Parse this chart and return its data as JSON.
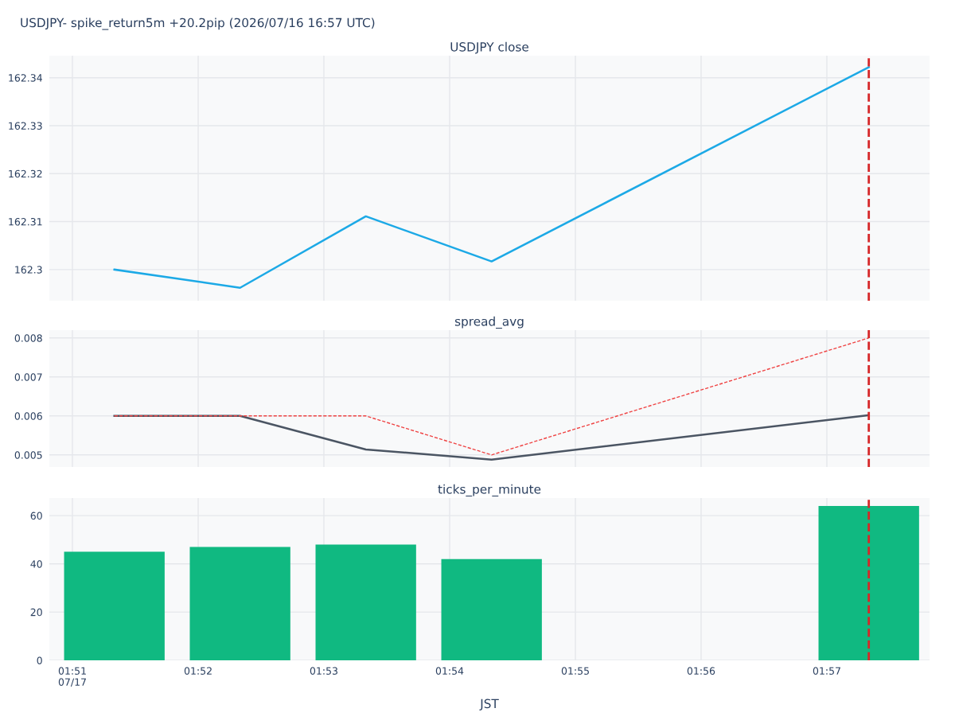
{
  "chart_data": [
    {
      "type": "line",
      "title": "USDJPY- spike_return5m +20.2pip (2026/07/16 16:57 UTC)",
      "subtitle": "USDJPY close",
      "x": [
        1.85556,
        1.87222,
        1.88889,
        1.90556,
        1.95556
      ],
      "series": [
        {
          "color": "#1ca9e6",
          "values": [
            162.3,
            162.2962,
            162.3111,
            162.3017,
            162.3422
          ]
        }
      ],
      "xlim": [
        1.84694,
        1.96361
      ],
      "xticks": [
        {
          "value": 1.85,
          "label": null
        },
        {
          "value": 1.86667,
          "label": null
        },
        {
          "value": 1.88333,
          "label": null
        },
        {
          "value": 1.9,
          "label": null
        },
        {
          "value": 1.91667,
          "label": null
        },
        {
          "value": 1.93333,
          "label": null
        },
        {
          "value": 1.95,
          "label": null
        }
      ],
      "ylim": [
        162.2935,
        162.3446
      ],
      "yticks": [
        {
          "value": 162.3,
          "label": "162.3"
        },
        162.31,
        162.32,
        162.33,
        162.34
      ],
      "tick_labels": "y",
      "grid": true,
      "marker": "none",
      "line_style": "solid",
      "ref_lines": [
        {
          "axis": "x",
          "value": 1.95556,
          "color": "#d62728",
          "line_style": "dashed"
        }
      ]
    },
    {
      "type": "line",
      "title": "spread_avg",
      "x": [
        1.85556,
        1.87222,
        1.88889,
        1.90556,
        1.95556
      ],
      "series": [
        {
          "color": "#ef4444",
          "line_style": "dashed",
          "values": [
            0.006,
            0.006,
            0.006,
            0.005,
            0.008
          ]
        },
        {
          "color": "#4b5563",
          "line_style": "solid",
          "values": [
            0.006,
            0.006,
            0.00514,
            0.00488,
            0.00602
          ]
        }
      ],
      "xlim": [
        1.84694,
        1.96361
      ],
      "xticks": [
        {
          "value": 1.85,
          "label": null
        },
        {
          "value": 1.86667,
          "label": null
        },
        {
          "value": 1.88333,
          "label": null
        },
        {
          "value": 1.9,
          "label": null
        },
        {
          "value": 1.91667,
          "label": null
        },
        {
          "value": 1.93333,
          "label": null
        },
        {
          "value": 1.95,
          "label": null
        }
      ],
      "ylim": [
        0.00469,
        0.0082
      ],
      "yticks": [
        0.005,
        0.006,
        0.007,
        0.008
      ],
      "tick_labels": "y",
      "grid": true,
      "marker": "none",
      "ref_lines": [
        {
          "axis": "x",
          "value": 1.95556,
          "color": "#d62728",
          "line_style": "dashed"
        }
      ]
    },
    {
      "type": "bar",
      "title": "ticks_per_minute",
      "xlabel": "JST",
      "x": [
        1.85556,
        1.87222,
        1.88889,
        1.90556,
        1.95556
      ],
      "series": [
        {
          "color": "#10b981",
          "values": [
            45,
            47,
            48,
            42,
            64
          ]
        }
      ],
      "xlim": [
        1.84694,
        1.96361
      ],
      "xticks": [
        {
          "value": 1.85,
          "label": "01:51\n07/17"
        },
        {
          "value": 1.86667,
          "label": "01:52"
        },
        {
          "value": 1.88333,
          "label": "01:53"
        },
        {
          "value": 1.9,
          "label": "01:54"
        },
        {
          "value": 1.91667,
          "label": "01:55"
        },
        {
          "value": 1.93333,
          "label": "01:56"
        },
        {
          "value": 1.95,
          "label": "01:57"
        }
      ],
      "ylim": [
        0,
        67.3
      ],
      "yticks": [
        0,
        20,
        40,
        60
      ],
      "grid": true,
      "ref_lines": [
        {
          "axis": "x",
          "value": 1.95556,
          "color": "#d62728",
          "line_style": "dashed"
        }
      ]
    }
  ]
}
